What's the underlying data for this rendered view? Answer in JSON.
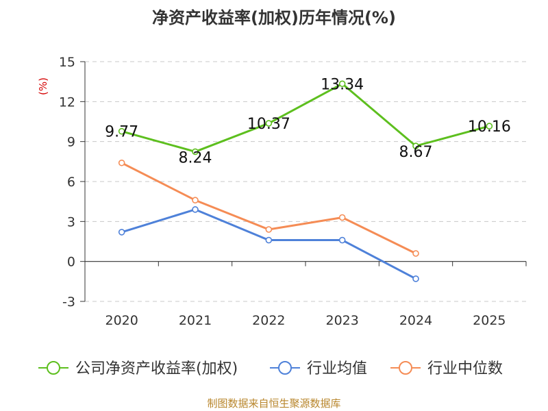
{
  "title": "净资产收益率(加权)历年情况(%)",
  "source": "制图数据来自恒生聚源数据库",
  "chart_data": {
    "type": "line",
    "title": "净资产收益率(加权)历年情况(%)",
    "ylabel": "(%)",
    "xlabel": "",
    "categories": [
      "2020",
      "2021",
      "2022",
      "2023",
      "2024",
      "2025"
    ],
    "yticks": [
      "15",
      "12",
      "9",
      "6",
      "3",
      "0",
      "-3"
    ],
    "ylim": [
      -3,
      15
    ],
    "grid": true,
    "legend_position": "bottom",
    "series": [
      {
        "name": "公司净资产收益率(加权)",
        "color": "#5dbf1e",
        "values": [
          9.77,
          8.24,
          10.37,
          13.34,
          8.67,
          10.16
        ],
        "labels": [
          "9.77",
          "8.24",
          "10.37",
          "13.34",
          "8.67",
          "10.16"
        ]
      },
      {
        "name": "行业均值",
        "color": "#4e81d9",
        "values": [
          2.2,
          3.9,
          1.6,
          1.6,
          -1.3,
          null
        ]
      },
      {
        "name": "行业中位数",
        "color": "#f58c55",
        "values": [
          7.4,
          4.6,
          2.4,
          3.3,
          0.6,
          null
        ]
      }
    ]
  }
}
